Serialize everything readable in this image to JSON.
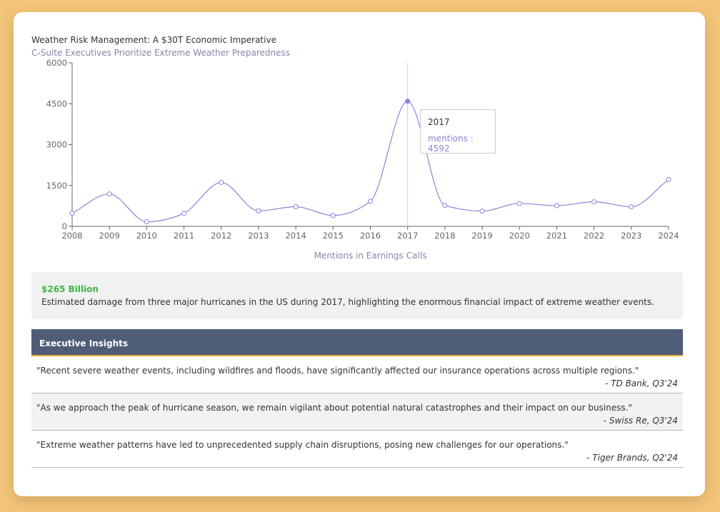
{
  "chart_data": {
    "type": "line",
    "title": "Weather Risk Management: A $30T Economic Imperative",
    "subtitle": "C-Suite Executives Prioritize Extreme Weather Preparedness",
    "xlabel": "Mentions in Earnings Calls",
    "ylabel": "",
    "ylim": [
      0,
      6000
    ],
    "yticks": [
      0,
      1500,
      3000,
      4500,
      6000
    ],
    "x": [
      2008,
      2009,
      2010,
      2011,
      2012,
      2013,
      2014,
      2015,
      2016,
      2017,
      2018,
      2019,
      2020,
      2021,
      2022,
      2023,
      2024
    ],
    "series": [
      {
        "name": "mentions",
        "values": [
          480,
          1190,
          170,
          480,
          1610,
          570,
          720,
          400,
          920,
          4592,
          770,
          560,
          840,
          760,
          900,
          720,
          1720
        ],
        "color": "#8884d8"
      }
    ],
    "grid": false,
    "tooltip": {
      "year": "2017",
      "label": "mentions : 4592"
    }
  },
  "highlight": {
    "value": "$265 Billion",
    "text": "Estimated damage from three major hurricanes in the US during 2017, highlighting the enormous financial impact of extreme weather events.",
    "value_color": "#3fb44a"
  },
  "insights": {
    "header": "Executive Insights",
    "header_color": "#4f5d78",
    "accent_color": "#f0a73a",
    "quotes": [
      {
        "text": "\"Recent severe weather events, including wildfires and floods, have significantly affected our insurance operations across multiple regions.\"",
        "source": "- TD Bank, Q3'24"
      },
      {
        "text": "\"As we approach the peak of hurricane season, we remain vigilant about potential natural catastrophes and their impact on our business.\"",
        "source": "- Swiss Re, Q3'24"
      },
      {
        "text": "\"Extreme weather patterns have led to unprecedented supply chain disruptions, posing new challenges for our operations.\"",
        "source": "- Tiger Brands, Q2'24"
      }
    ]
  }
}
